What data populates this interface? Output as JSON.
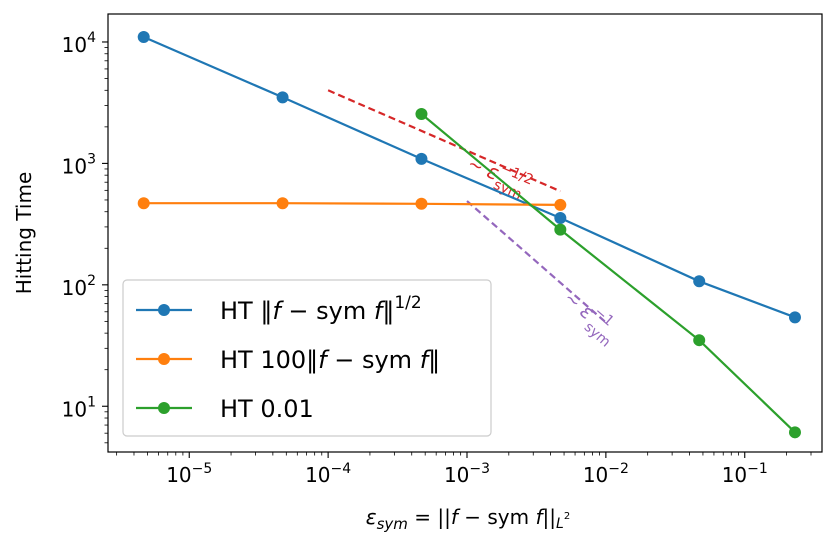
{
  "chart_data": {
    "type": "line",
    "xscale": "log",
    "yscale": "log",
    "xlim": [
      2.6e-06,
      0.36
    ],
    "ylim": [
      4.2,
      17000
    ],
    "xlabel": "ε_sym = ||f − sym f||_L²",
    "xlabel_parts": {
      "eps": "ε",
      "sub": "sym",
      "eq": " = ||",
      "f": "f",
      "mid": " − sym ",
      "f2": "f",
      "end": "||",
      "Lsub": "L",
      "Lsup": "2"
    },
    "ylabel": "Hitting Time",
    "x_ticks": [
      {
        "value": 1e-05,
        "base": "10",
        "exp": "−5"
      },
      {
        "value": 0.0001,
        "base": "10",
        "exp": "−4"
      },
      {
        "value": 0.001,
        "base": "10",
        "exp": "−3"
      },
      {
        "value": 0.01,
        "base": "10",
        "exp": "−2"
      },
      {
        "value": 0.1,
        "base": "10",
        "exp": "−1"
      }
    ],
    "y_ticks": [
      {
        "value": 10,
        "base": "10",
        "exp": "1"
      },
      {
        "value": 100,
        "base": "10",
        "exp": "2"
      },
      {
        "value": 1000,
        "base": "10",
        "exp": "3"
      },
      {
        "value": 10000,
        "base": "10",
        "exp": "4"
      }
    ],
    "series": [
      {
        "name": "HT ‖f − sym f‖^1/2",
        "legend": {
          "pre": "HT ‖",
          "f": "f",
          "mid": " − sym ",
          "f2": "f",
          "post": "‖",
          "sup": "1/2"
        },
        "color": "#1f77b4",
        "x": [
          4.7e-06,
          4.7e-05,
          0.00047,
          0.0047,
          0.047,
          0.23
        ],
        "y": [
          11000,
          3500,
          1090,
          355,
          107,
          54
        ]
      },
      {
        "name": "HT 100‖f − sym f‖",
        "legend": {
          "pre": "HT 100‖",
          "f": "f",
          "mid": " − sym ",
          "f2": "f",
          "post": "‖",
          "sup": ""
        },
        "color": "#ff7f0e",
        "x": [
          4.7e-06,
          4.7e-05,
          0.00047,
          0.0047
        ],
        "y": [
          470,
          470,
          465,
          455
        ]
      },
      {
        "name": "HT 0.01",
        "legend": {
          "pre": "HT 0.01",
          "f": "",
          "mid": "",
          "f2": "",
          "post": "",
          "sup": ""
        },
        "color": "#2ca02c",
        "x": [
          0.00047,
          0.0047,
          0.047,
          0.23
        ],
        "y": [
          2550,
          285,
          35,
          6.1
        ]
      }
    ],
    "reference_lines": [
      {
        "name": "~ ε_sym^−1/2",
        "color": "#d62728",
        "x": [
          0.0001,
          0.0047
        ],
        "y": [
          4000,
          590
        ],
        "label": {
          "tilde": "∼ ",
          "eps": "ε",
          "sup": "−1/2",
          "sub": "sym"
        }
      },
      {
        "name": "~ ε_sym^−1",
        "color": "#9467bd",
        "x": [
          0.001,
          0.01
        ],
        "y": [
          490,
          49
        ],
        "label": {
          "tilde": "∼ ",
          "eps": "ε",
          "sup": "−1",
          "sub": "sym"
        }
      }
    ],
    "legend_position": "lower-left",
    "grid": false
  }
}
